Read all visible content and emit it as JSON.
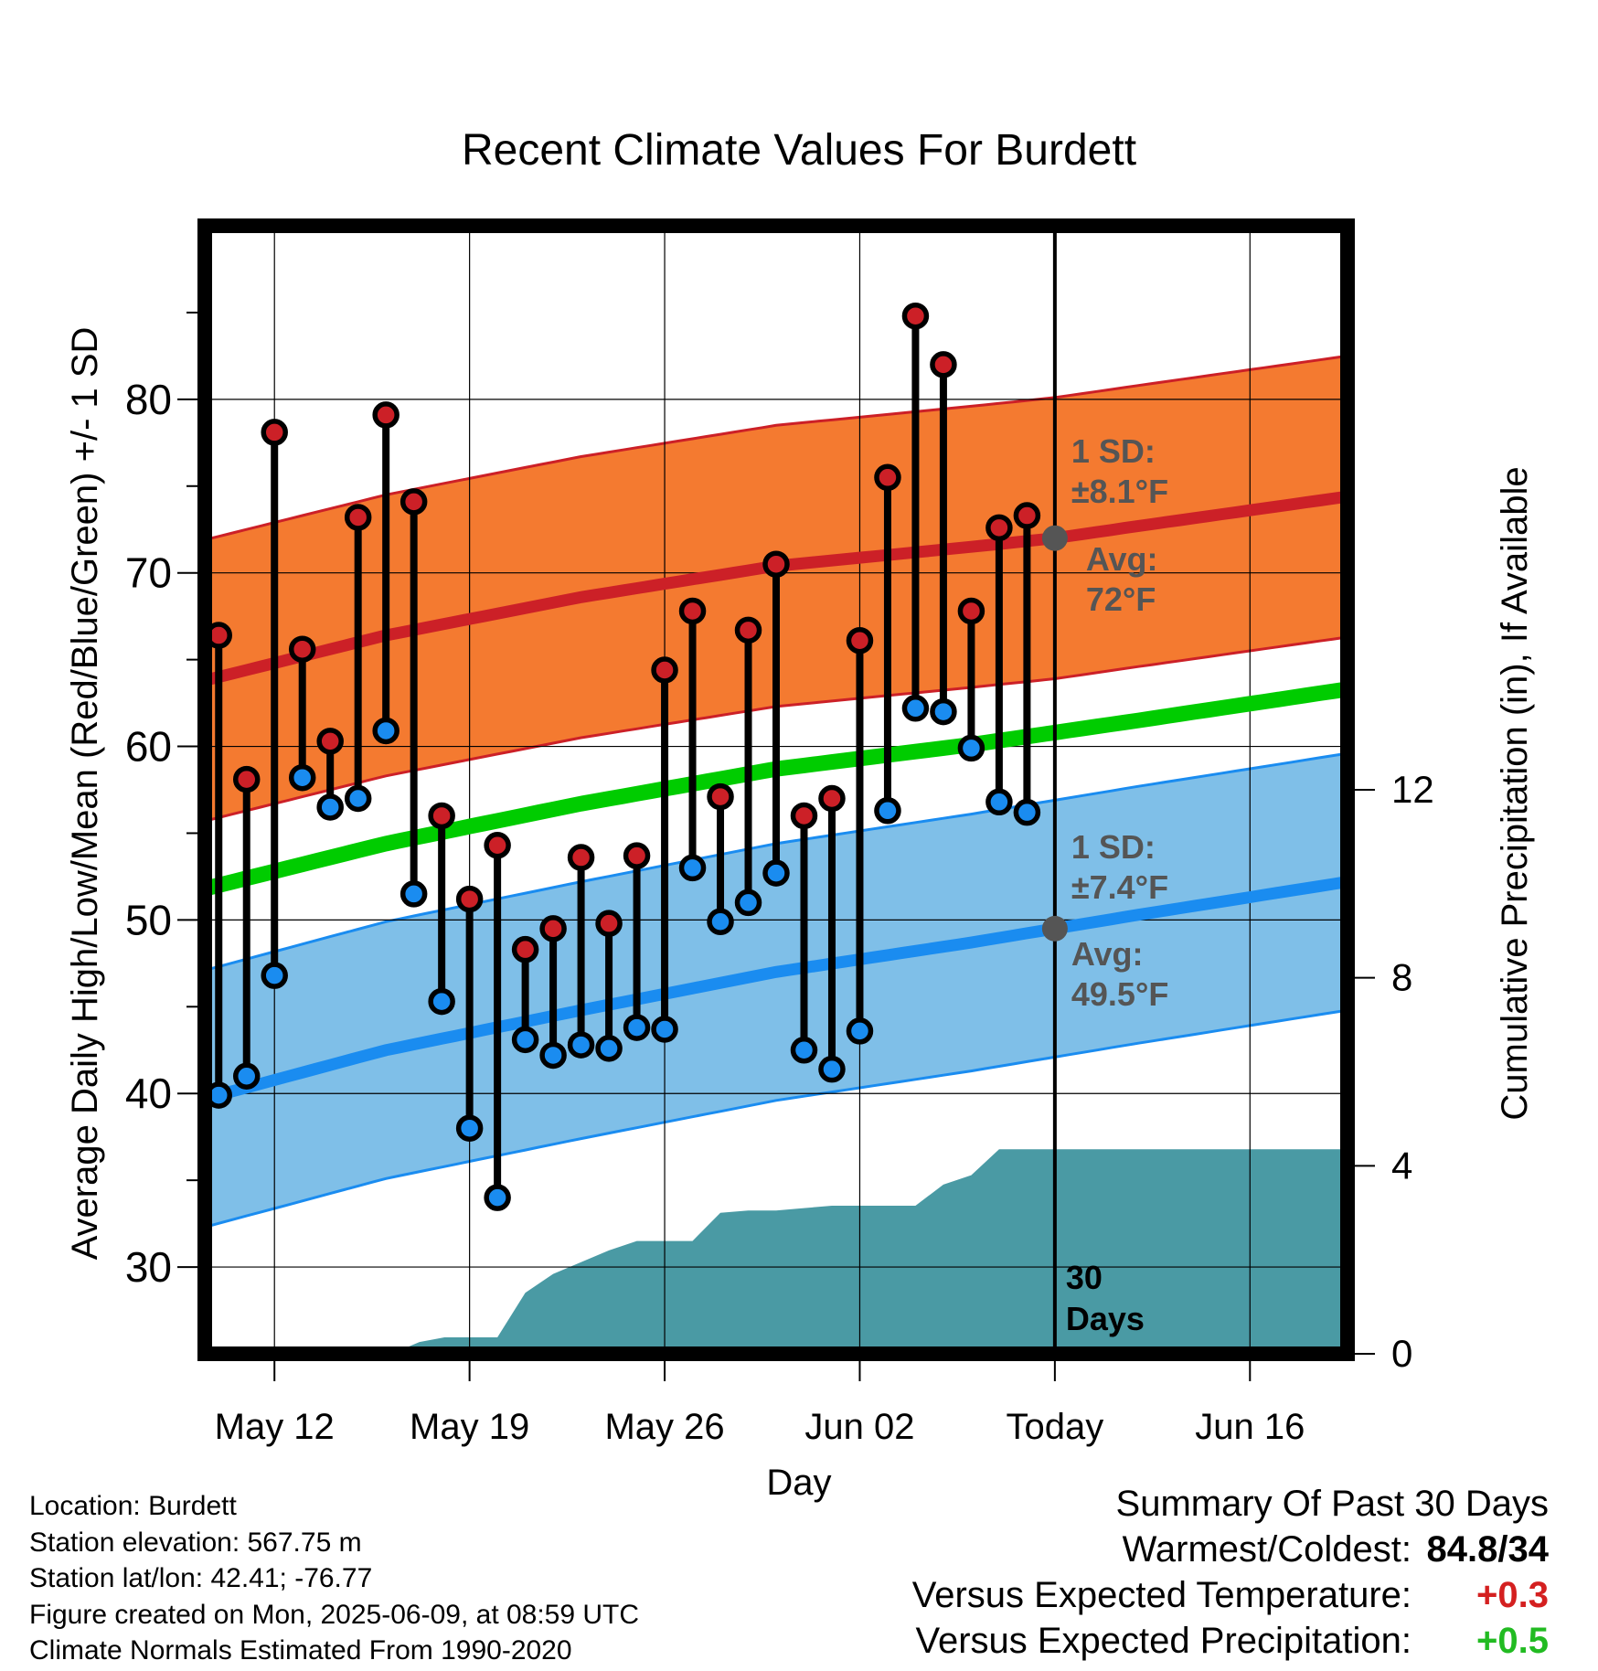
{
  "chart_data": {
    "type": "line",
    "title": "Recent Climate Values For Burdett",
    "xlabel": "Day",
    "ylabel_left": "Average Daily High/Low/Mean (Red/Blue/Green) +/- 1 SD",
    "ylabel_right": "Cumulative Precipitation (in), If Available",
    "x_ticks": [
      {
        "day": 3,
        "label": "May 12"
      },
      {
        "day": 10,
        "label": "May 19"
      },
      {
        "day": 17,
        "label": "May 26"
      },
      {
        "day": 24,
        "label": "Jun 02"
      },
      {
        "day": 31,
        "label": "Today"
      },
      {
        "day": 38,
        "label": "Jun 16"
      }
    ],
    "xlim": [
      0.5,
      41.5
    ],
    "ylim_left": [
      25,
      90
    ],
    "y_ticks_left": [
      30,
      40,
      50,
      60,
      70,
      80
    ],
    "ylim_right": [
      0,
      24
    ],
    "y_ticks_right": [
      0,
      4,
      8,
      12
    ],
    "grid": true,
    "colors": {
      "high_band": "#f47a30",
      "high_line": "#cc2027",
      "low_band": "#7fbfe8",
      "low_line": "#1a8cf0",
      "mean_line": "#00cc00",
      "precip": "#4a9aa4",
      "high_dot": "#cc2027",
      "low_dot": "#1a8cf0",
      "annotation": "#555555",
      "positive_temp": "#d42020",
      "positive_precip": "#22bb22"
    },
    "normals": {
      "x": [
        0.5,
        7,
        14,
        21,
        28,
        31,
        34,
        41.5
      ],
      "high_avg": [
        63.8,
        66.4,
        68.6,
        70.4,
        71.5,
        72.0,
        72.7,
        74.4
      ],
      "high_sd": 8.1,
      "low_avg": [
        39.7,
        42.5,
        44.8,
        47.0,
        48.7,
        49.5,
        50.3,
        52.2
      ],
      "low_sd": 7.4,
      "mean_avg": [
        51.8,
        54.4,
        56.7,
        58.7,
        60.1,
        60.8,
        61.5,
        63.3
      ]
    },
    "days": [
      1,
      2,
      3,
      4,
      5,
      6,
      7,
      8,
      9,
      10,
      11,
      12,
      13,
      14,
      15,
      16,
      17,
      18,
      19,
      20,
      21,
      22,
      23,
      24,
      25,
      26,
      27,
      28,
      29,
      30
    ],
    "highs": [
      66.4,
      58.1,
      78.1,
      65.6,
      60.3,
      73.2,
      79.1,
      74.1,
      56.0,
      51.2,
      54.3,
      48.3,
      49.5,
      53.6,
      49.8,
      53.7,
      64.4,
      67.8,
      57.1,
      66.7,
      70.5,
      56.0,
      57.0,
      66.1,
      75.5,
      84.8,
      82.0,
      67.8,
      72.6,
      73.3
    ],
    "lows": [
      39.9,
      41.0,
      46.8,
      58.2,
      56.5,
      57.0,
      60.9,
      51.5,
      45.3,
      38.0,
      34.0,
      43.1,
      42.2,
      42.8,
      42.6,
      43.8,
      43.7,
      53.0,
      49.9,
      51.0,
      52.7,
      42.5,
      41.4,
      43.6,
      56.3,
      62.2,
      62.0,
      59.9,
      56.8,
      56.2
    ],
    "precip_cumulative": {
      "x": [
        7.2,
        8.2,
        9.1,
        10.1,
        11,
        12,
        13,
        14,
        15,
        16,
        16.5,
        17,
        18,
        19,
        20,
        21,
        22,
        23,
        24,
        25,
        26,
        27,
        28,
        29,
        30,
        31,
        41.5
      ],
      "y": [
        0,
        0.25,
        0.35,
        0.35,
        0.35,
        1.3,
        1.7,
        1.95,
        2.2,
        2.4,
        2.4,
        2.4,
        2.4,
        3.0,
        3.05,
        3.05,
        3.1,
        3.15,
        3.15,
        3.15,
        3.15,
        3.6,
        3.8,
        4.35,
        4.35,
        4.35,
        4.35
      ]
    },
    "annotations": {
      "high_sd_label": "1 SD:",
      "high_sd_value": "±8.1°F",
      "high_avg_label": "Avg:",
      "high_avg_value": "72°F",
      "low_sd_label": "1 SD:",
      "low_sd_value": "±7.4°F",
      "low_avg_label": "Avg:",
      "low_avg_value": "49.5°F",
      "window_line1": "30",
      "window_line2": "Days",
      "today_day": 31
    }
  },
  "footer": {
    "location": "Location: Burdett",
    "elevation": "Station elevation: 567.75 m",
    "latlon": "Station lat/lon: 42.41; -76.77",
    "created": "Figure created on Mon, 2025-06-09, at 08:59 UTC",
    "normals": "Climate Normals Estimated From 1990-2020"
  },
  "summary": {
    "heading": "Summary Of Past 30 Days",
    "warm_cold_label": "Warmest/Coldest:",
    "warm_cold_value": "84.8/34",
    "temp_label": "Versus Expected Temperature:",
    "temp_value": "+0.3",
    "precip_label": "Versus Expected Precipitation:",
    "precip_value": "+0.5"
  }
}
